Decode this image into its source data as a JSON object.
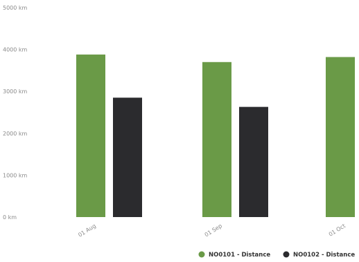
{
  "chart_data": {
    "type": "bar",
    "categories": [
      "01 Aug",
      "01 Sep",
      "01 Oct"
    ],
    "series": [
      {
        "name": "NO0101 - Distance",
        "values": [
          3880,
          3700,
          3820
        ],
        "color": "#6a9a47"
      },
      {
        "name": "NO0102 - Distance",
        "values": [
          2850,
          2630,
          null
        ],
        "color": "#2b2b2e"
      }
    ],
    "y_ticks": [
      "0 km",
      "1000 km",
      "2000 km",
      "3000 km",
      "4000 km",
      "5000 km"
    ],
    "ylim": [
      0,
      5000
    ],
    "grid": false,
    "legend_position": "bottom-right"
  }
}
